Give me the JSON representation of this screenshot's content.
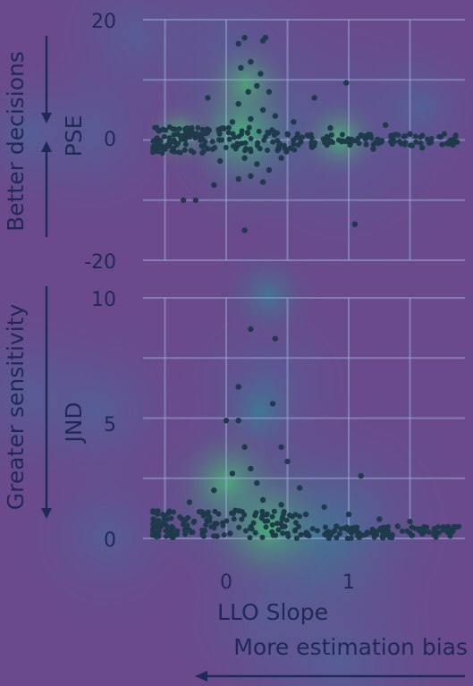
{
  "chart_data": [
    {
      "type": "scatter",
      "title": "",
      "xlabel": "LLO Slope",
      "ylabel": "PSE",
      "side_label": "Better decisions",
      "ylim": [
        -20,
        20
      ],
      "xlim": [
        -0.6,
        1.9
      ],
      "yticks": [
        "20",
        "0",
        "-20"
      ],
      "ytick_values": [
        20,
        0,
        -20
      ],
      "grid": true,
      "points": [
        [
          0.1,
          16
        ],
        [
          0.15,
          17
        ],
        [
          0.3,
          16.5
        ],
        [
          0.32,
          17
        ],
        [
          0.12,
          12
        ],
        [
          0.2,
          13
        ],
        [
          0.28,
          11
        ],
        [
          -0.15,
          7
        ],
        [
          0.98,
          9.5
        ],
        [
          0.18,
          8
        ],
        [
          0.25,
          9
        ],
        [
          0.35,
          8
        ],
        [
          0.1,
          6
        ],
        [
          0.3,
          5
        ],
        [
          0.72,
          7
        ],
        [
          0.4,
          4
        ],
        [
          0.05,
          3
        ],
        [
          0.2,
          3.5
        ],
        [
          0.55,
          3
        ],
        [
          0.85,
          2
        ],
        [
          1.3,
          2.5
        ],
        [
          -0.4,
          1
        ],
        [
          -0.3,
          0.5
        ],
        [
          0.5,
          1
        ],
        [
          1.5,
          1
        ],
        [
          1.75,
          0.5
        ],
        [
          1.1,
          0.8
        ],
        [
          -0.55,
          -0.5
        ],
        [
          -0.2,
          -1
        ],
        [
          0.7,
          -1.2
        ],
        [
          1.2,
          -1.5
        ],
        [
          1.6,
          -1.3
        ],
        [
          1.85,
          -0.8
        ],
        [
          0.15,
          -3
        ],
        [
          0.25,
          -4
        ],
        [
          0.35,
          -5
        ],
        [
          -0.05,
          -3.5
        ],
        [
          0.45,
          -3
        ],
        [
          0.2,
          -6
        ],
        [
          0.3,
          -7
        ],
        [
          0.1,
          -6.5
        ],
        [
          -0.1,
          -7.5
        ],
        [
          -0.35,
          -10
        ],
        [
          -0.25,
          -10
        ],
        [
          0.15,
          -15
        ],
        [
          1.05,
          -14
        ]
      ]
    },
    {
      "type": "scatter",
      "title": "",
      "xlabel": "LLO Slope",
      "ylabel": "JND",
      "side_label": "Greater sensitivity",
      "ylim": [
        0,
        10
      ],
      "xlim": [
        -0.6,
        1.9
      ],
      "yticks": [
        "10",
        "5",
        "0"
      ],
      "ytick_values": [
        10,
        5,
        0
      ],
      "xticks": [
        "0",
        "1"
      ],
      "xtick_values": [
        0,
        1
      ],
      "grid": true,
      "points": [
        [
          0.2,
          8.7
        ],
        [
          0.4,
          8.3
        ],
        [
          0.1,
          6.3
        ],
        [
          0.38,
          5.6
        ],
        [
          0.0,
          4.9
        ],
        [
          0.1,
          4.9
        ],
        [
          0.15,
          3.8
        ],
        [
          0.45,
          3.8
        ],
        [
          0.5,
          3.2
        ],
        [
          1.1,
          2.6
        ],
        [
          0.05,
          2.7
        ],
        [
          0.2,
          2.9
        ],
        [
          0.25,
          2.3
        ],
        [
          -0.1,
          2.0
        ],
        [
          0.6,
          2.1
        ],
        [
          -0.3,
          1.5
        ],
        [
          0.3,
          1.6
        ],
        [
          0.45,
          1.4
        ],
        [
          0.8,
          1.3
        ],
        [
          -0.2,
          1.1
        ],
        [
          0.65,
          1.0
        ],
        [
          1.0,
          1.0
        ],
        [
          1.25,
          0.8
        ],
        [
          1.5,
          0.7
        ],
        [
          -0.55,
          0.4
        ],
        [
          -0.4,
          0.3
        ],
        [
          0.9,
          0.5
        ],
        [
          1.4,
          0.5
        ],
        [
          1.7,
          0.4
        ],
        [
          1.85,
          0.3
        ],
        [
          -0.45,
          0.1
        ],
        [
          0.5,
          0.2
        ],
        [
          1.15,
          0.2
        ],
        [
          1.6,
          0.2
        ]
      ]
    }
  ],
  "annotations": {
    "bottom_label": "More estimation bias"
  }
}
